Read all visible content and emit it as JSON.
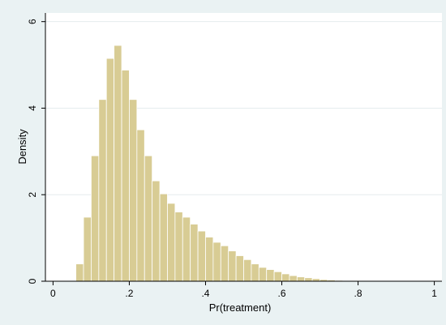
{
  "chart_data": {
    "type": "bar",
    "title": "",
    "xlabel": "Pr(treatment)",
    "ylabel": "Density",
    "xlim": [
      -0.02,
      1.02
    ],
    "ylim": [
      0,
      6.2
    ],
    "x_ticks": [
      {
        "value": 0,
        "label": "0"
      },
      {
        "value": 0.2,
        "label": ".2"
      },
      {
        "value": 0.4,
        "label": ".4"
      },
      {
        "value": 0.6,
        "label": ".6"
      },
      {
        "value": 0.8,
        "label": ".8"
      },
      {
        "value": 1,
        "label": "1"
      }
    ],
    "y_ticks": [
      {
        "value": 0,
        "label": "0"
      },
      {
        "value": 2,
        "label": "2"
      },
      {
        "value": 4,
        "label": "4"
      },
      {
        "value": 6,
        "label": "6"
      }
    ],
    "grid": "horizontal",
    "bin_width": 0.02,
    "bins": [
      {
        "x": 0.06,
        "density": 0.4
      },
      {
        "x": 0.08,
        "density": 1.48
      },
      {
        "x": 0.1,
        "density": 2.9
      },
      {
        "x": 0.12,
        "density": 4.2
      },
      {
        "x": 0.14,
        "density": 5.15
      },
      {
        "x": 0.16,
        "density": 5.45
      },
      {
        "x": 0.18,
        "density": 4.88
      },
      {
        "x": 0.2,
        "density": 4.2
      },
      {
        "x": 0.22,
        "density": 3.5
      },
      {
        "x": 0.24,
        "density": 2.9
      },
      {
        "x": 0.26,
        "density": 2.32
      },
      {
        "x": 0.28,
        "density": 2.02
      },
      {
        "x": 0.3,
        "density": 1.8
      },
      {
        "x": 0.32,
        "density": 1.6
      },
      {
        "x": 0.34,
        "density": 1.48
      },
      {
        "x": 0.36,
        "density": 1.32
      },
      {
        "x": 0.38,
        "density": 1.16
      },
      {
        "x": 0.4,
        "density": 1.02
      },
      {
        "x": 0.42,
        "density": 0.9
      },
      {
        "x": 0.44,
        "density": 0.82
      },
      {
        "x": 0.46,
        "density": 0.7
      },
      {
        "x": 0.48,
        "density": 0.59
      },
      {
        "x": 0.5,
        "density": 0.5
      },
      {
        "x": 0.52,
        "density": 0.4
      },
      {
        "x": 0.54,
        "density": 0.32
      },
      {
        "x": 0.56,
        "density": 0.27
      },
      {
        "x": 0.58,
        "density": 0.22
      },
      {
        "x": 0.6,
        "density": 0.17
      },
      {
        "x": 0.62,
        "density": 0.13
      },
      {
        "x": 0.64,
        "density": 0.1
      },
      {
        "x": 0.66,
        "density": 0.08
      },
      {
        "x": 0.68,
        "density": 0.06
      },
      {
        "x": 0.7,
        "density": 0.04
      },
      {
        "x": 0.72,
        "density": 0.03
      },
      {
        "x": 0.74,
        "density": 0.02
      },
      {
        "x": 0.76,
        "density": 0.015
      },
      {
        "x": 0.78,
        "density": 0.01
      },
      {
        "x": 0.8,
        "density": 0.007
      },
      {
        "x": 0.82,
        "density": 0.005
      },
      {
        "x": 0.84,
        "density": 0.003
      }
    ],
    "colors": {
      "figure_background": "#eaf2f3",
      "plot_background": "#ffffff",
      "bar_fill": "#d8cc94",
      "bar_stroke": "#ffffff",
      "gridline": "#e5ecee",
      "axis": "#000000"
    }
  }
}
